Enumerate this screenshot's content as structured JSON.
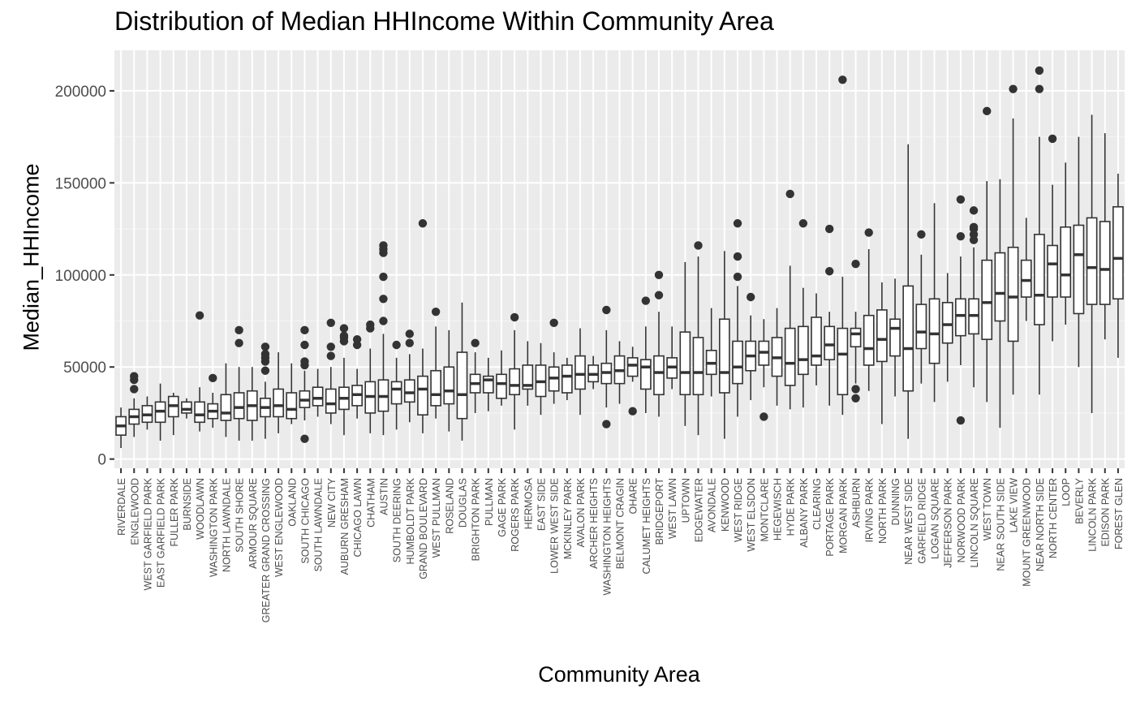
{
  "chart_data": {
    "type": "boxplot",
    "title": "Distribution of Median HHIncome Within Community Area",
    "xlabel": "Community Area",
    "ylabel": "Median_HHIncome",
    "ylim": [
      -5000,
      222000
    ],
    "yticks": [
      0,
      50000,
      100000,
      150000,
      200000
    ],
    "grid": true,
    "categories": [
      "RIVERDALE",
      "ENGLEWOOD",
      "WEST GARFIELD PARK",
      "EAST GARFIELD PARK",
      "FULLER PARK",
      "BURNSIDE",
      "WOODLAWN",
      "WASHINGTON PARK",
      "NORTH LAWNDALE",
      "SOUTH SHORE",
      "ARMOUR SQUARE",
      "GREATER GRAND CROSSING",
      "WEST ENGLEWOOD",
      "OAKLAND",
      "SOUTH CHICAGO",
      "SOUTH LAWNDALE",
      "NEW CITY",
      "AUBURN GRESHAM",
      "CHICAGO LAWN",
      "CHATHAM",
      "AUSTIN",
      "SOUTH DEERING",
      "HUMBOLDT PARK",
      "GRAND BOULEVARD",
      "WEST PULLMAN",
      "ROSELAND",
      "DOUGLAS",
      "BRIGHTON PARK",
      "PULLMAN",
      "GAGE PARK",
      "ROGERS PARK",
      "HERMOSA",
      "EAST SIDE",
      "LOWER WEST SIDE",
      "MCKINLEY PARK",
      "AVALON PARK",
      "ARCHER HEIGHTS",
      "WASHINGTON HEIGHTS",
      "BELMONT CRAGIN",
      "OHARE",
      "CALUMET HEIGHTS",
      "BRIDGEPORT",
      "WEST LAWN",
      "UPTOWN",
      "EDGEWATER",
      "AVONDALE",
      "KENWOOD",
      "WEST RIDGE",
      "WEST ELSDON",
      "MONTCLARE",
      "HEGEWISCH",
      "HYDE PARK",
      "ALBANY PARK",
      "CLEARING",
      "PORTAGE PARK",
      "MORGAN PARK",
      "ASHBURN",
      "IRVING PARK",
      "NORTH PARK",
      "DUNNING",
      "NEAR WEST SIDE",
      "GARFIELD RIDGE",
      "LOGAN SQUARE",
      "JEFFERSON PARK",
      "NORWOOD PARK",
      "LINCOLN SQUARE",
      "WEST TOWN",
      "NEAR SOUTH SIDE",
      "LAKE VIEW",
      "MOUNT GREENWOOD",
      "NEAR NORTH SIDE",
      "NORTH CENTER",
      "LOOP",
      "BEVERLY",
      "LINCOLN PARK",
      "EDISON PARK",
      "FOREST GLEN"
    ],
    "series": [
      {
        "min": 6000,
        "q1": 13000,
        "median": 18000,
        "q3": 23000,
        "max": 28000,
        "outliers": []
      },
      {
        "min": 12000,
        "q1": 19000,
        "median": 23000,
        "q3": 27000,
        "max": 33000,
        "outliers": [
          38000,
          43000,
          45000
        ]
      },
      {
        "min": 16000,
        "q1": 20000,
        "median": 24000,
        "q3": 29000,
        "max": 34000,
        "outliers": []
      },
      {
        "min": 10000,
        "q1": 20000,
        "median": 26000,
        "q3": 31000,
        "max": 41000,
        "outliers": []
      },
      {
        "min": 13000,
        "q1": 23000,
        "median": 29000,
        "q3": 34000,
        "max": 36000,
        "outliers": []
      },
      {
        "min": 22000,
        "q1": 25000,
        "median": 27000,
        "q3": 31000,
        "max": 33000,
        "outliers": []
      },
      {
        "min": 15000,
        "q1": 20000,
        "median": 24000,
        "q3": 31000,
        "max": 39000,
        "outliers": [
          78000
        ]
      },
      {
        "min": 17000,
        "q1": 22000,
        "median": 26000,
        "q3": 30000,
        "max": 36000,
        "outliers": [
          44000
        ]
      },
      {
        "min": 12000,
        "q1": 21000,
        "median": 25000,
        "q3": 35000,
        "max": 52000,
        "outliers": []
      },
      {
        "min": 10000,
        "q1": 22000,
        "median": 28000,
        "q3": 36000,
        "max": 50000,
        "outliers": [
          63000,
          70000
        ]
      },
      {
        "min": 10000,
        "q1": 21000,
        "median": 29000,
        "q3": 37000,
        "max": 50000,
        "outliers": []
      },
      {
        "min": 11000,
        "q1": 23000,
        "median": 28000,
        "q3": 33000,
        "max": 42000,
        "outliers": [
          48000,
          53000,
          55000,
          57000,
          61000
        ]
      },
      {
        "min": 14000,
        "q1": 23000,
        "median": 29000,
        "q3": 38000,
        "max": 58000,
        "outliers": []
      },
      {
        "min": 19000,
        "q1": 22000,
        "median": 27000,
        "q3": 36000,
        "max": 52000,
        "outliers": []
      },
      {
        "min": 21000,
        "q1": 28000,
        "median": 32000,
        "q3": 37000,
        "max": 48000,
        "outliers": [
          11000,
          51000,
          53000,
          62000,
          70000
        ]
      },
      {
        "min": 23000,
        "q1": 29000,
        "median": 33000,
        "q3": 39000,
        "max": 49000,
        "outliers": []
      },
      {
        "min": 19000,
        "q1": 25000,
        "median": 30000,
        "q3": 38000,
        "max": 50000,
        "outliers": [
          56000,
          61000,
          74000
        ]
      },
      {
        "min": 13000,
        "q1": 27000,
        "median": 33000,
        "q3": 39000,
        "max": 55000,
        "outliers": [
          64000,
          66000,
          67000,
          71000
        ]
      },
      {
        "min": 22000,
        "q1": 29000,
        "median": 35000,
        "q3": 40000,
        "max": 49000,
        "outliers": [
          62000,
          65000
        ]
      },
      {
        "min": 14000,
        "q1": 25000,
        "median": 34000,
        "q3": 42000,
        "max": 60000,
        "outliers": [
          71000,
          73000
        ]
      },
      {
        "min": 13000,
        "q1": 26000,
        "median": 34000,
        "q3": 43000,
        "max": 68000,
        "outliers": [
          75000,
          87000,
          99000,
          112000,
          114000,
          116000
        ]
      },
      {
        "min": 16000,
        "q1": 30000,
        "median": 38000,
        "q3": 42000,
        "max": 55000,
        "outliers": [
          62000
        ]
      },
      {
        "min": 20000,
        "q1": 31000,
        "median": 36000,
        "q3": 43000,
        "max": 57000,
        "outliers": [
          63000,
          68000
        ]
      },
      {
        "min": 14000,
        "q1": 24000,
        "median": 38000,
        "q3": 45000,
        "max": 60000,
        "outliers": [
          128000
        ]
      },
      {
        "min": 22000,
        "q1": 29000,
        "median": 35000,
        "q3": 48000,
        "max": 72000,
        "outliers": [
          80000
        ]
      },
      {
        "min": 15000,
        "q1": 30000,
        "median": 37000,
        "q3": 50000,
        "max": 70000,
        "outliers": []
      },
      {
        "min": 10000,
        "q1": 22000,
        "median": 35000,
        "q3": 58000,
        "max": 85000,
        "outliers": []
      },
      {
        "min": 25000,
        "q1": 36000,
        "median": 41000,
        "q3": 46000,
        "max": 58000,
        "outliers": [
          63000
        ]
      },
      {
        "min": 26000,
        "q1": 36000,
        "median": 43000,
        "q3": 45000,
        "max": 55000,
        "outliers": []
      },
      {
        "min": 29000,
        "q1": 33000,
        "median": 41000,
        "q3": 46000,
        "max": 59000,
        "outliers": []
      },
      {
        "min": 16000,
        "q1": 35000,
        "median": 40000,
        "q3": 49000,
        "max": 70000,
        "outliers": [
          77000
        ]
      },
      {
        "min": 29000,
        "q1": 38000,
        "median": 40000,
        "q3": 51000,
        "max": 64000,
        "outliers": []
      },
      {
        "min": 24000,
        "q1": 34000,
        "median": 42000,
        "q3": 51000,
        "max": 63000,
        "outliers": []
      },
      {
        "min": 30000,
        "q1": 37000,
        "median": 44000,
        "q3": 50000,
        "max": 58000,
        "outliers": [
          74000
        ]
      },
      {
        "min": 32000,
        "q1": 36000,
        "median": 45000,
        "q3": 51000,
        "max": 55000,
        "outliers": []
      },
      {
        "min": 24000,
        "q1": 38000,
        "median": 46000,
        "q3": 56000,
        "max": 71000,
        "outliers": []
      },
      {
        "min": 38000,
        "q1": 42000,
        "median": 46000,
        "q3": 51000,
        "max": 56000,
        "outliers": []
      },
      {
        "min": 28000,
        "q1": 41000,
        "median": 47000,
        "q3": 52000,
        "max": 70000,
        "outliers": [
          19000,
          81000
        ]
      },
      {
        "min": 30000,
        "q1": 41000,
        "median": 48000,
        "q3": 56000,
        "max": 64000,
        "outliers": []
      },
      {
        "min": 42000,
        "q1": 45000,
        "median": 51000,
        "q3": 55000,
        "max": 61000,
        "outliers": [
          26000
        ]
      },
      {
        "min": 25000,
        "q1": 38000,
        "median": 50000,
        "q3": 54000,
        "max": 72000,
        "outliers": [
          86000
        ]
      },
      {
        "min": 23000,
        "q1": 35000,
        "median": 47000,
        "q3": 56000,
        "max": 80000,
        "outliers": [
          89000,
          100000
        ]
      },
      {
        "min": 38000,
        "q1": 44000,
        "median": 50000,
        "q3": 55000,
        "max": 72000,
        "outliers": []
      },
      {
        "min": 18000,
        "q1": 35000,
        "median": 47000,
        "q3": 69000,
        "max": 107000,
        "outliers": []
      },
      {
        "min": 13000,
        "q1": 35000,
        "median": 47000,
        "q3": 66000,
        "max": 110000,
        "outliers": [
          116000
        ]
      },
      {
        "min": 34000,
        "q1": 46000,
        "median": 52000,
        "q3": 59000,
        "max": 82000,
        "outliers": []
      },
      {
        "min": 11000,
        "q1": 36000,
        "median": 47000,
        "q3": 76000,
        "max": 113000,
        "outliers": []
      },
      {
        "min": 23000,
        "q1": 41000,
        "median": 50000,
        "q3": 64000,
        "max": 94000,
        "outliers": [
          99000,
          110000,
          128000
        ]
      },
      {
        "min": 32000,
        "q1": 48000,
        "median": 56000,
        "q3": 64000,
        "max": 78000,
        "outliers": [
          88000
        ]
      },
      {
        "min": 39000,
        "q1": 51000,
        "median": 58000,
        "q3": 64000,
        "max": 76000,
        "outliers": [
          23000
        ]
      },
      {
        "min": 29000,
        "q1": 45000,
        "median": 55000,
        "q3": 66000,
        "max": 82000,
        "outliers": []
      },
      {
        "min": 27000,
        "q1": 40000,
        "median": 52000,
        "q3": 71000,
        "max": 105000,
        "outliers": [
          144000
        ]
      },
      {
        "min": 28000,
        "q1": 46000,
        "median": 54000,
        "q3": 72000,
        "max": 93000,
        "outliers": [
          128000
        ]
      },
      {
        "min": 40000,
        "q1": 51000,
        "median": 56000,
        "q3": 77000,
        "max": 90000,
        "outliers": []
      },
      {
        "min": 29000,
        "q1": 54000,
        "median": 62000,
        "q3": 72000,
        "max": 80000,
        "outliers": [
          102000,
          125000
        ]
      },
      {
        "min": 24000,
        "q1": 35000,
        "median": 57000,
        "q3": 71000,
        "max": 99000,
        "outliers": [
          206000
        ]
      },
      {
        "min": 41000,
        "q1": 61000,
        "median": 68000,
        "q3": 71000,
        "max": 80000,
        "outliers": [
          33000,
          38000,
          106000
        ]
      },
      {
        "min": 37000,
        "q1": 51000,
        "median": 60000,
        "q3": 78000,
        "max": 114000,
        "outliers": [
          123000
        ]
      },
      {
        "min": 19000,
        "q1": 53000,
        "median": 65000,
        "q3": 81000,
        "max": 96000,
        "outliers": []
      },
      {
        "min": 34000,
        "q1": 56000,
        "median": 71000,
        "q3": 76000,
        "max": 98000,
        "outliers": []
      },
      {
        "min": 11000,
        "q1": 37000,
        "median": 60000,
        "q3": 94000,
        "max": 171000,
        "outliers": []
      },
      {
        "min": 41000,
        "q1": 60000,
        "median": 69000,
        "q3": 84000,
        "max": 111000,
        "outliers": [
          122000
        ]
      },
      {
        "min": 31000,
        "q1": 52000,
        "median": 68000,
        "q3": 87000,
        "max": 139000,
        "outliers": []
      },
      {
        "min": 42000,
        "q1": 63000,
        "median": 73000,
        "q3": 85000,
        "max": 101000,
        "outliers": []
      },
      {
        "min": 51000,
        "q1": 67000,
        "median": 78000,
        "q3": 87000,
        "max": 110000,
        "outliers": [
          21000,
          121000,
          141000
        ]
      },
      {
        "min": 39000,
        "q1": 68000,
        "median": 78000,
        "q3": 87000,
        "max": 115000,
        "outliers": [
          119000,
          122000,
          125000,
          126000,
          135000
        ]
      },
      {
        "min": 31000,
        "q1": 65000,
        "median": 85000,
        "q3": 108000,
        "max": 151000,
        "outliers": [
          189000
        ]
      },
      {
        "min": 17000,
        "q1": 75000,
        "median": 90000,
        "q3": 112000,
        "max": 152000,
        "outliers": []
      },
      {
        "min": 35000,
        "q1": 64000,
        "median": 88000,
        "q3": 115000,
        "max": 185000,
        "outliers": [
          201000
        ]
      },
      {
        "min": 75000,
        "q1": 88000,
        "median": 97000,
        "q3": 108000,
        "max": 131000,
        "outliers": []
      },
      {
        "min": 35000,
        "q1": 73000,
        "median": 89000,
        "q3": 122000,
        "max": 175000,
        "outliers": [
          201000,
          211000
        ]
      },
      {
        "min": 64000,
        "q1": 88000,
        "median": 106000,
        "q3": 116000,
        "max": 149000,
        "outliers": [
          174000
        ]
      },
      {
        "min": 73000,
        "q1": 88000,
        "median": 100000,
        "q3": 126000,
        "max": 161000,
        "outliers": []
      },
      {
        "min": 50000,
        "q1": 79000,
        "median": 111000,
        "q3": 127000,
        "max": 175000,
        "outliers": []
      },
      {
        "min": 25000,
        "q1": 84000,
        "median": 104000,
        "q3": 131000,
        "max": 187000,
        "outliers": []
      },
      {
        "min": 65000,
        "q1": 84000,
        "median": 103000,
        "q3": 129000,
        "max": 177000,
        "outliers": []
      },
      {
        "min": 55000,
        "q1": 87000,
        "median": 109000,
        "q3": 137000,
        "max": 155000,
        "outliers": []
      }
    ]
  }
}
